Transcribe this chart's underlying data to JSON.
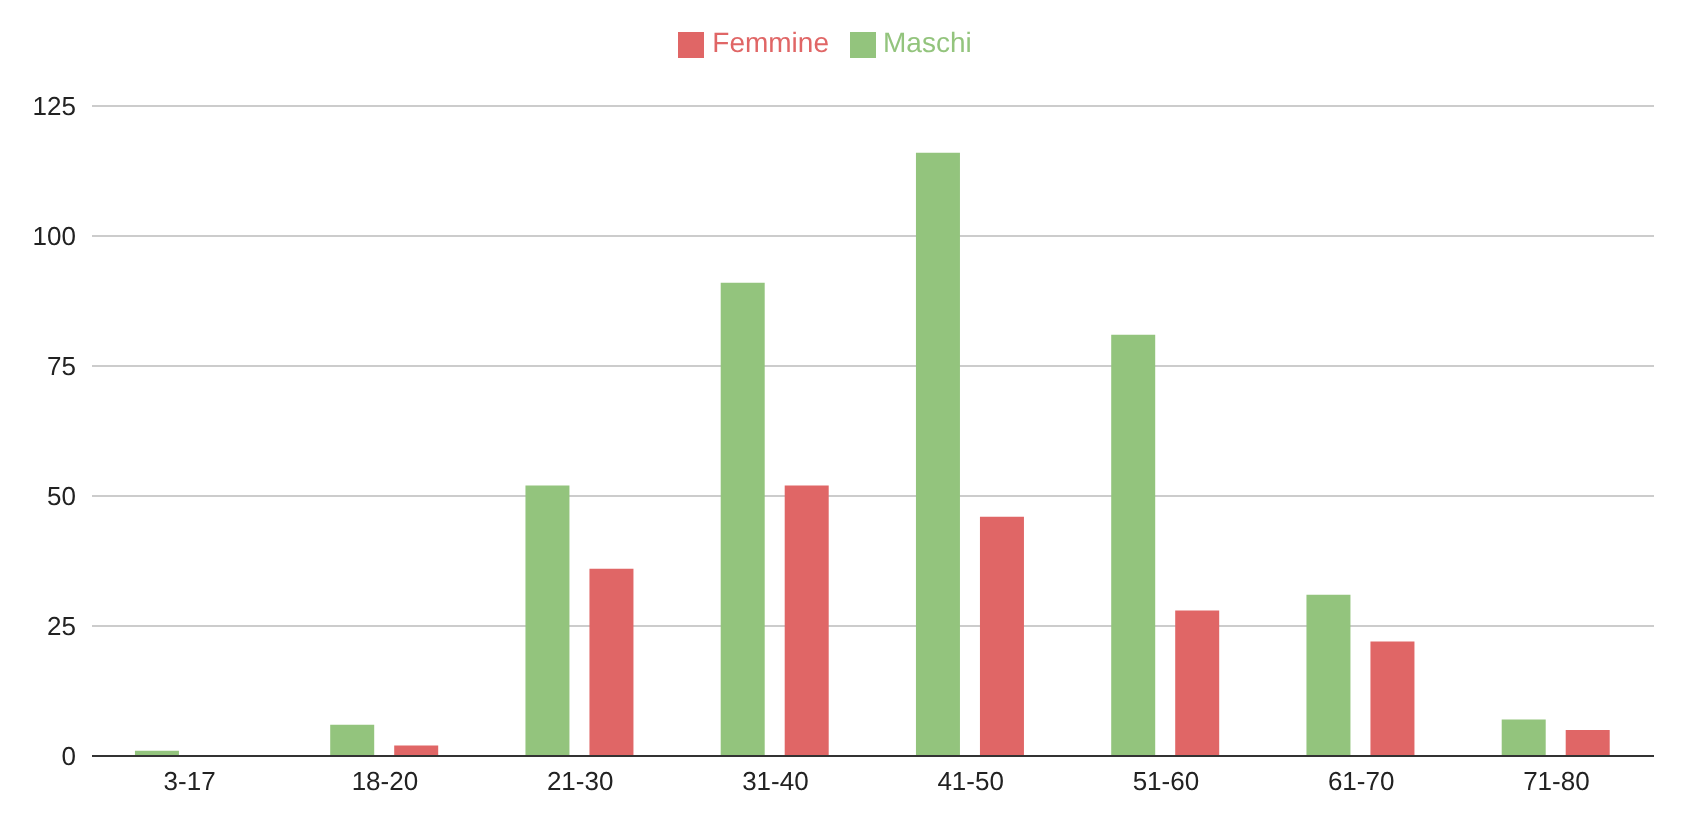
{
  "chart_data": {
    "type": "bar",
    "categories": [
      "3-17",
      "18-20",
      "21-30",
      "31-40",
      "41-50",
      "51-60",
      "61-70",
      "71-80"
    ],
    "series": [
      {
        "name": "Maschi",
        "color": "#93c47d",
        "values": [
          1,
          6,
          52,
          91,
          116,
          81,
          31,
          7
        ]
      },
      {
        "name": "Femmine",
        "color": "#e06666",
        "values": [
          0,
          2,
          36,
          52,
          46,
          28,
          22,
          5
        ]
      }
    ],
    "ylim": [
      0,
      125
    ],
    "yticks": [
      0,
      25,
      50,
      75,
      100,
      125
    ],
    "grid": "y",
    "legend": "top"
  }
}
